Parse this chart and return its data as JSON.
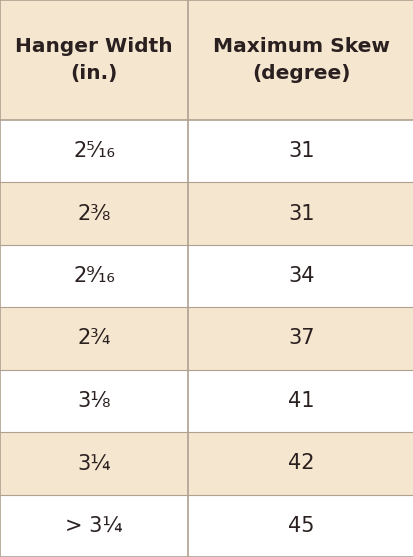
{
  "col1_header": "Hanger Width\n(in.)",
  "col2_header": "Maximum Skew\n(degree)",
  "rows": [
    {
      "width": "2⁵⁄₁₆",
      "skew": "31"
    },
    {
      "width": "2³⁄₈",
      "skew": "31"
    },
    {
      "width": "2⁹⁄₁₆",
      "skew": "34"
    },
    {
      "width": "2³⁄₄",
      "skew": "37"
    },
    {
      "width": "3¹⁄₈",
      "skew": "41"
    },
    {
      "width": "3¼",
      "skew": "42"
    },
    {
      "width": "> 3¼",
      "skew": "45"
    }
  ],
  "header_bg": "#f5e6d0",
  "row_bg_white": "#ffffff",
  "row_bg_tan": "#f5e6d0",
  "border_color": "#b0a090",
  "text_color": "#2b2020",
  "header_fontsize": 14.5,
  "cell_fontsize": 15,
  "fig_w": 4.14,
  "fig_h": 5.57,
  "dpi": 100
}
